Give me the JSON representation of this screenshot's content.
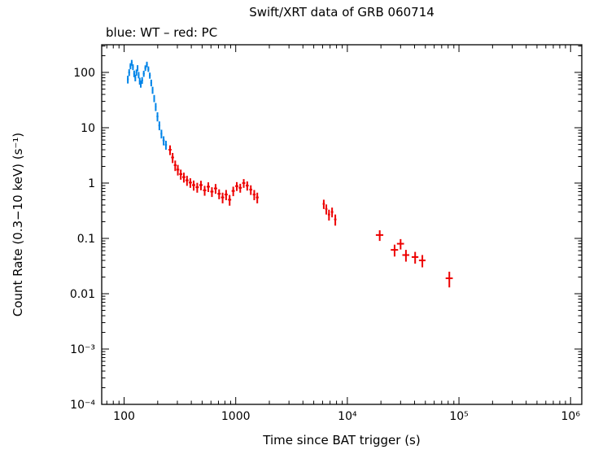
{
  "chart_data": {
    "type": "scatter",
    "title": "Swift/XRT data of GRB 060714",
    "legend_text": "blue: WT – red: PC",
    "xlabel": "Time since BAT trigger (s)",
    "ylabel": "Count Rate (0.3−10 keV) (s⁻¹)",
    "xscale": "log",
    "yscale": "log",
    "xlim": [
      63,
      1260000
    ],
    "ylim": [
      0.0001,
      316
    ],
    "grid": false,
    "x_ticks": [
      {
        "value": 100,
        "label": "100"
      },
      {
        "value": 1000,
        "label": "1000"
      },
      {
        "value": 10000,
        "label": "10⁴"
      },
      {
        "value": 100000,
        "label": "10⁵"
      },
      {
        "value": 1000000,
        "label": "10⁶"
      }
    ],
    "y_ticks": [
      {
        "value": 100,
        "label": "100"
      },
      {
        "value": 10,
        "label": "10"
      },
      {
        "value": 1,
        "label": "1"
      },
      {
        "value": 0.1,
        "label": "0.1"
      },
      {
        "value": 0.01,
        "label": "0.01"
      },
      {
        "value": 0.001,
        "label": "10⁻³"
      },
      {
        "value": 0.0001,
        "label": "10⁻⁴"
      }
    ],
    "series": [
      {
        "name": "WT",
        "color": "#0084e8",
        "points_format": [
          "time_s",
          "time_err_s",
          "rate_cts_s",
          "rate_err_cts_s"
        ],
        "points": [
          [
            108,
            2,
            75,
            12
          ],
          [
            111,
            2,
            100,
            14
          ],
          [
            114,
            2,
            130,
            16
          ],
          [
            117,
            2,
            150,
            18
          ],
          [
            120,
            2,
            125,
            15
          ],
          [
            123,
            2,
            95,
            13
          ],
          [
            126,
            2,
            80,
            11
          ],
          [
            129,
            2,
            100,
            13
          ],
          [
            132,
            2,
            120,
            15
          ],
          [
            135,
            2,
            90,
            12
          ],
          [
            138,
            2,
            70,
            10
          ],
          [
            141,
            2,
            62,
            9
          ],
          [
            145,
            3,
            72,
            10
          ],
          [
            150,
            3,
            95,
            12
          ],
          [
            155,
            3,
            120,
            14
          ],
          [
            160,
            3,
            140,
            16
          ],
          [
            165,
            3,
            115,
            13
          ],
          [
            170,
            3,
            88,
            11
          ],
          [
            175,
            3,
            65,
            9
          ],
          [
            180,
            3,
            48,
            7
          ],
          [
            186,
            3,
            34,
            5
          ],
          [
            192,
            3,
            24,
            4
          ],
          [
            199,
            4,
            16,
            3
          ],
          [
            207,
            4,
            11,
            2
          ],
          [
            216,
            4,
            7.8,
            1.4
          ],
          [
            226,
            5,
            5.9,
            1.1
          ],
          [
            237,
            5,
            4.9,
            0.9
          ]
        ]
      },
      {
        "name": "PC",
        "color": "#ed0000",
        "points_format": [
          "time_s",
          "time_err_s",
          "rate_cts_s",
          "rate_err_cts_s"
        ],
        "points": [
          [
            258,
            8,
            4.0,
            0.8
          ],
          [
            272,
            8,
            2.9,
            0.6
          ],
          [
            287,
            8,
            2.1,
            0.45
          ],
          [
            303,
            9,
            1.75,
            0.38
          ],
          [
            322,
            10,
            1.45,
            0.3
          ],
          [
            343,
            11,
            1.28,
            0.26
          ],
          [
            366,
            12,
            1.12,
            0.23
          ],
          [
            392,
            13,
            1.02,
            0.2
          ],
          [
            420,
            14,
            0.92,
            0.19
          ],
          [
            452,
            15,
            0.84,
            0.17
          ],
          [
            488,
            17,
            0.92,
            0.18
          ],
          [
            527,
            18,
            0.74,
            0.15
          ],
          [
            568,
            19,
            0.86,
            0.17
          ],
          [
            612,
            20,
            0.7,
            0.14
          ],
          [
            660,
            22,
            0.8,
            0.16
          ],
          [
            710,
            24,
            0.64,
            0.13
          ],
          [
            763,
            25,
            0.55,
            0.12
          ],
          [
            820,
            27,
            0.62,
            0.13
          ],
          [
            882,
            29,
            0.5,
            0.11
          ],
          [
            950,
            31,
            0.72,
            0.14
          ],
          [
            1022,
            33,
            0.88,
            0.16
          ],
          [
            1098,
            35,
            0.82,
            0.15
          ],
          [
            1180,
            37,
            1.0,
            0.18
          ],
          [
            1268,
            39,
            0.9,
            0.17
          ],
          [
            1365,
            41,
            0.76,
            0.15
          ],
          [
            1465,
            43,
            0.62,
            0.13
          ],
          [
            1560,
            45,
            0.55,
            0.12
          ],
          [
            6150,
            140,
            0.42,
            0.08
          ],
          [
            6480,
            150,
            0.34,
            0.07
          ],
          [
            6850,
            160,
            0.27,
            0.06
          ],
          [
            7300,
            180,
            0.3,
            0.06
          ],
          [
            7800,
            190,
            0.22,
            0.05
          ],
          [
            19500,
            1500,
            0.115,
            0.025
          ],
          [
            26500,
            2000,
            0.062,
            0.015
          ],
          [
            30000,
            2200,
            0.08,
            0.017
          ],
          [
            33500,
            2400,
            0.05,
            0.012
          ],
          [
            40500,
            2800,
            0.046,
            0.011
          ],
          [
            47000,
            3200,
            0.04,
            0.01
          ],
          [
            82000,
            6000,
            0.019,
            0.006
          ]
        ]
      }
    ]
  }
}
